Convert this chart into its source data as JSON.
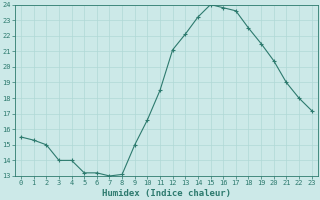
{
  "x": [
    0,
    1,
    2,
    3,
    4,
    5,
    6,
    7,
    8,
    9,
    10,
    11,
    12,
    13,
    14,
    15,
    16,
    17,
    18,
    19,
    20,
    21,
    22,
    23
  ],
  "y": [
    15.5,
    15.3,
    15.0,
    14.0,
    14.0,
    13.2,
    13.2,
    13.0,
    13.1,
    15.0,
    16.6,
    18.5,
    21.1,
    22.1,
    23.2,
    24.0,
    23.8,
    23.6,
    22.5,
    21.5,
    20.4,
    19.0,
    18.0,
    17.2
  ],
  "line_color": "#2d7a6e",
  "marker": "+",
  "marker_size": 3,
  "marker_lw": 0.8,
  "xlabel": "Humidex (Indice chaleur)",
  "xlim": [
    -0.5,
    23.5
  ],
  "ylim": [
    13,
    24
  ],
  "yticks": [
    13,
    14,
    15,
    16,
    17,
    18,
    19,
    20,
    21,
    22,
    23,
    24
  ],
  "xticks": [
    0,
    1,
    2,
    3,
    4,
    5,
    6,
    7,
    8,
    9,
    10,
    11,
    12,
    13,
    14,
    15,
    16,
    17,
    18,
    19,
    20,
    21,
    22,
    23
  ],
  "background_color": "#cce9e8",
  "grid_color": "#b0d8d6",
  "line_width": 0.8,
  "tick_label_fontsize": 5.0,
  "xlabel_fontsize": 6.5,
  "tick_color": "#2d7a6e",
  "label_color": "#2d7a6e",
  "spine_color": "#2d7a6e"
}
